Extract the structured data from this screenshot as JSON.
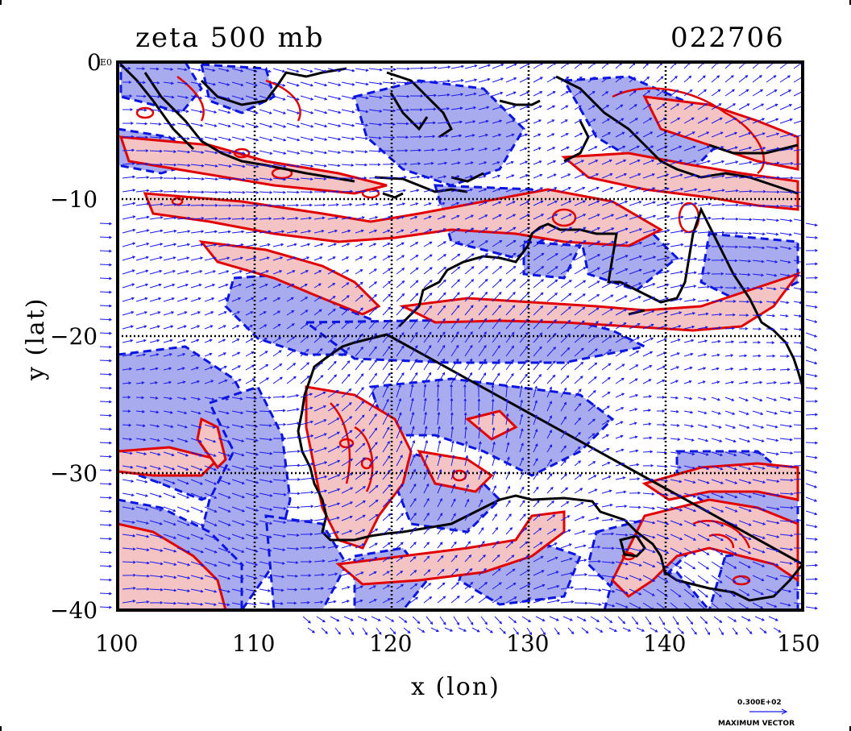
{
  "title": {
    "field": "zeta 500 mb",
    "date_code": "022706"
  },
  "axes": {
    "xlabel": "x (lon)",
    "ylabel": "y (lat)",
    "x_ticks": [
      "100",
      "110",
      "120",
      "130",
      "140",
      "150"
    ],
    "y_ticks": [
      "0",
      "−10",
      "−20",
      "−30",
      "−40"
    ],
    "x_range": [
      100,
      150
    ],
    "y_range": [
      -40,
      0
    ],
    "y_zero_suffix": "E0"
  },
  "legend": {
    "vector_magnitude": "0.300E+02",
    "vector_label": "MAXIMUM VECTOR"
  },
  "colors": {
    "positive_fill": "#f4c3c3",
    "positive_line": "#e00000",
    "negative_fill": "#a9abef",
    "negative_line": "#0a14e0",
    "coast": "#000000",
    "vector": "#1a1ae6",
    "grid": "#000000"
  }
}
